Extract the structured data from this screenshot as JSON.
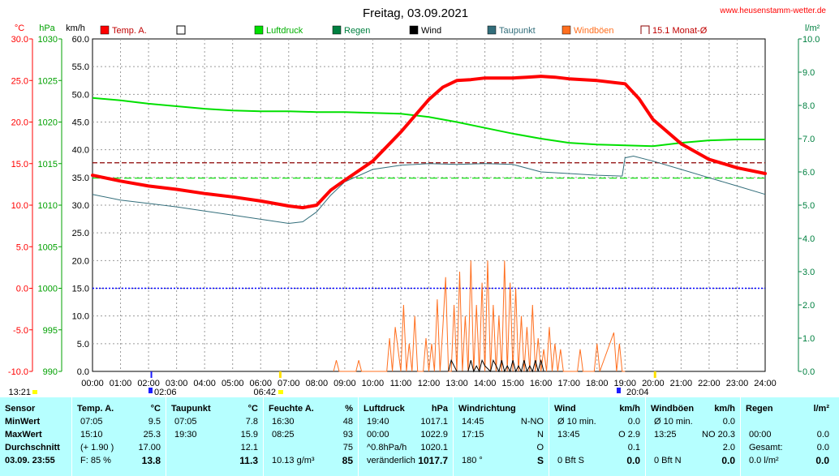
{
  "title": "Freitag, 03.09.2021",
  "site": "www.heusenstamm-wetter.de",
  "colors": {
    "temp": "#ff0000",
    "pressure": "#00e000",
    "rain": "#008040",
    "wind": "#000000",
    "dewpoint": "#336e7b",
    "gust": "#ff6f1f",
    "monthly_avg": "#8b0000",
    "zero_line": "#0000ff",
    "left_axis_temp": "#ff0000",
    "left_axis_hpa": "#00a000",
    "left_axis_kmh": "#000000",
    "right_axis": "#008040",
    "panel_bg": "#b6ffff"
  },
  "axes": {
    "temp_unit": "°C",
    "hpa_unit": "hPa",
    "kmh_unit": "km/h",
    "rain_unit": "l/m²",
    "temp_ticks": [
      "30.0",
      "25.0",
      "20.0",
      "15.0",
      "10.0",
      "5.0",
      "0.0",
      "-5.0",
      "-10.0"
    ],
    "hpa_ticks": [
      "1030",
      "1025",
      "1020",
      "1015",
      "1010",
      "1005",
      "1000",
      "995",
      "990"
    ],
    "kmh_ticks": [
      "60.0",
      "55.0",
      "50.0",
      "45.0",
      "40.0",
      "35.0",
      "30.0",
      "25.0",
      "20.0",
      "15.0",
      "10.0",
      "5.0",
      "0.0"
    ],
    "rain_ticks": [
      "10.0",
      "9.0",
      "8.0",
      "7.0",
      "6.0",
      "5.0",
      "4.0",
      "3.0",
      "2.0",
      "1.0",
      "0.0"
    ],
    "x_ticks": [
      "00:00",
      "01:00",
      "02:00",
      "03:00",
      "04:00",
      "05:00",
      "06:00",
      "07:00",
      "08:00",
      "09:00",
      "10:00",
      "11:00",
      "12:00",
      "13:00",
      "14:00",
      "15:00",
      "16:00",
      "17:00",
      "18:00",
      "19:00",
      "20:00",
      "21:00",
      "22:00",
      "23:00",
      "24:00"
    ]
  },
  "legend": [
    {
      "label": "Temp. A.",
      "color": "#ff0000",
      "style": "filled"
    },
    {
      "label": "",
      "color": "#ffffff",
      "style": "empty"
    },
    {
      "label": "Luftdruck",
      "color": "#00e000",
      "style": "filled"
    },
    {
      "label": "Regen",
      "color": "#008040",
      "style": "filled"
    },
    {
      "label": "Wind",
      "color": "#000000",
      "style": "filled"
    },
    {
      "label": "Taupunkt",
      "color": "#336e7b",
      "style": "filled"
    },
    {
      "label": "Windböen",
      "color": "#ff6f1f",
      "style": "filled"
    },
    {
      "label": "15.1 Monat-Ø",
      "color": "#8b0000",
      "style": "outline"
    }
  ],
  "markers": {
    "sunrise_label": "06:42",
    "sunset_label": "20:04",
    "moon_label": "02:06",
    "top_left_time": "13:21"
  },
  "chart_data": {
    "type": "line",
    "x_range_hours": [
      0,
      24
    ],
    "temp_range": [
      -10,
      30
    ],
    "kmh_range": [
      0,
      60
    ],
    "monthly_avg_temp": 15.1,
    "pressure_ref_hpa": 1013.25,
    "series": [
      {
        "name": "Temp. A.",
        "unit": "°C",
        "x": [
          0,
          1,
          2,
          3,
          4,
          5,
          6,
          7,
          7.5,
          8,
          8.5,
          9,
          10,
          11,
          12,
          12.5,
          13,
          13.5,
          14,
          14.5,
          15,
          15.5,
          16,
          16.5,
          17,
          18,
          19,
          19.5,
          20,
          21,
          22,
          23,
          24
        ],
        "values": [
          13.6,
          12.9,
          12.3,
          11.9,
          11.4,
          11.0,
          10.5,
          9.9,
          9.7,
          10.0,
          11.8,
          13.0,
          15.3,
          18.8,
          22.7,
          24.2,
          25.0,
          25.1,
          25.3,
          25.3,
          25.3,
          25.4,
          25.5,
          25.4,
          25.2,
          25.0,
          24.6,
          22.8,
          20.3,
          17.4,
          15.5,
          14.5,
          13.8
        ]
      },
      {
        "name": "Taupunkt",
        "unit": "°C",
        "x": [
          0,
          1,
          2,
          3,
          4,
          5,
          6,
          7,
          7.5,
          8,
          8.5,
          9,
          10,
          11,
          12,
          13,
          14,
          15,
          16,
          17,
          18,
          18.9,
          19,
          19.3,
          20,
          21,
          22,
          23,
          24
        ],
        "values": [
          11.3,
          10.6,
          10.2,
          9.8,
          9.3,
          8.8,
          8.3,
          7.8,
          8.0,
          9.2,
          11.2,
          12.8,
          14.3,
          14.8,
          15.0,
          14.9,
          15.0,
          14.9,
          14.0,
          13.8,
          13.6,
          13.5,
          15.7,
          15.9,
          15.3,
          14.3,
          13.3,
          12.3,
          11.3
        ]
      },
      {
        "name": "Luftdruck",
        "unit": "hPa",
        "x": [
          0,
          1,
          2,
          3,
          4,
          5,
          6,
          7,
          8,
          9,
          10,
          11,
          12,
          13,
          14,
          15,
          16,
          17,
          18,
          19,
          20,
          21,
          22,
          23,
          24
        ],
        "values": [
          1022.9,
          1022.6,
          1022.2,
          1021.9,
          1021.6,
          1021.4,
          1021.3,
          1021.3,
          1021.2,
          1021.2,
          1021.1,
          1021.0,
          1020.6,
          1020.0,
          1019.3,
          1018.6,
          1018.0,
          1017.5,
          1017.3,
          1017.2,
          1017.1,
          1017.5,
          1017.8,
          1017.9,
          1017.9
        ]
      },
      {
        "name": "Windböen",
        "unit": "km/h",
        "x": [
          8.6,
          8.7,
          8.8,
          9.4,
          9.5,
          9.6,
          10.5,
          10.6,
          10.7,
          10.8,
          11.0,
          11.1,
          11.2,
          11.3,
          11.4,
          11.5,
          11.6,
          11.8,
          11.9,
          12.0,
          12.1,
          12.2,
          12.3,
          12.4,
          12.5,
          12.6,
          12.7,
          12.8,
          12.9,
          13.0,
          13.1,
          13.2,
          13.3,
          13.4,
          13.5,
          13.6,
          13.7,
          13.8,
          13.9,
          14.0,
          14.1,
          14.2,
          14.3,
          14.4,
          14.5,
          14.6,
          14.7,
          14.8,
          14.9,
          15.0,
          15.1,
          15.2,
          15.3,
          15.4,
          15.5,
          15.6,
          15.7,
          15.8,
          15.9,
          16.0,
          16.1,
          16.2,
          16.3,
          16.4,
          16.5,
          16.6,
          16.7,
          16.8,
          17.3,
          17.4,
          17.5,
          17.9,
          18.0,
          18.1,
          18.6,
          18.7,
          18.8,
          18.9,
          19.0
        ],
        "values": [
          0,
          2,
          0,
          0,
          2,
          0,
          0,
          6,
          0,
          8,
          0,
          12,
          0,
          5,
          0,
          10,
          0,
          0,
          6,
          0,
          5,
          0,
          13,
          0,
          8,
          17,
          0,
          0,
          12,
          0,
          18,
          0,
          10,
          0,
          20,
          0,
          12,
          0,
          16,
          0,
          20,
          0,
          12,
          0,
          10,
          0,
          20,
          0,
          16,
          0,
          15,
          0,
          10,
          0,
          8,
          0,
          12,
          0,
          6,
          0,
          4,
          0,
          8,
          0,
          5,
          0,
          4,
          0,
          0,
          4,
          0,
          0,
          5,
          0,
          7,
          0,
          5,
          0,
          0
        ]
      },
      {
        "name": "Wind",
        "unit": "km/h",
        "x": [
          12.7,
          12.8,
          12.9,
          13.0,
          13.4,
          13.5,
          13.6,
          13.7,
          13.8,
          13.9,
          14.0,
          14.2,
          14.3,
          14.4,
          14.5,
          14.6,
          14.7,
          14.8,
          14.9,
          15.0,
          15.1,
          15.2,
          15.3,
          15.4,
          15.5,
          15.6,
          15.7,
          15.8,
          15.9,
          16.0,
          16.1
        ],
        "values": [
          0,
          2,
          1,
          0,
          0,
          2,
          0,
          1,
          0,
          2,
          1,
          0,
          2,
          1,
          0,
          2,
          0,
          1,
          0,
          2,
          0,
          1,
          0,
          2,
          0,
          1,
          0,
          2,
          0,
          2,
          0
        ]
      },
      {
        "name": "Regen",
        "unit": "l/m²",
        "x": [
          0,
          24
        ],
        "values": [
          0,
          0
        ]
      }
    ]
  },
  "panel": {
    "sensor": {
      "header": "Sensor",
      "rows": [
        "MinWert",
        "MaxWert",
        "Durchschnitt",
        "03.09.  23:55"
      ]
    },
    "temp": {
      "header": "Temp. A.",
      "unit": "°C",
      "rows": [
        [
          "07:05",
          "9.5"
        ],
        [
          "15:10",
          "25.3"
        ],
        [
          "(+ 1.90 )",
          "17.00"
        ],
        [
          "F: 85 %",
          "13.8"
        ]
      ]
    },
    "dew": {
      "header": "Taupunkt",
      "unit": "°C",
      "rows": [
        [
          "07:05",
          "7.8"
        ],
        [
          "19:30",
          "15.9"
        ],
        [
          "",
          "12.1"
        ],
        [
          "",
          "11.3"
        ]
      ]
    },
    "hum": {
      "header": "Feuchte A.",
      "unit": "%",
      "rows": [
        [
          "16:30",
          "48"
        ],
        [
          "08:25",
          "93"
        ],
        [
          "",
          "75"
        ],
        [
          "10.13 g/m³",
          "85"
        ]
      ]
    },
    "press": {
      "header": "Luftdruck",
      "unit": "hPa",
      "rows": [
        [
          "19:40",
          "1017.1"
        ],
        [
          "00:00",
          "1022.9"
        ],
        [
          "^0.8hPa/h",
          "1020.1"
        ],
        [
          "veränderlich",
          "1017.7"
        ]
      ]
    },
    "dir": {
      "header": "Windrichtung",
      "rows": [
        [
          "14:45",
          "N-NO"
        ],
        [
          "17:15",
          "N"
        ],
        [
          "",
          "O"
        ],
        [
          "180 °",
          "S"
        ]
      ]
    },
    "wind": {
      "header": "Wind",
      "unit": "km/h",
      "rows": [
        [
          "Ø 10 min.",
          "0.0"
        ],
        [
          "13:45",
          "O 2.9"
        ],
        [
          "",
          "0.1"
        ],
        [
          "0 Bft S",
          "0.0"
        ]
      ]
    },
    "gust": {
      "header": "Windböen",
      "unit": "km/h",
      "rows": [
        [
          "Ø 10 min.",
          "0.0"
        ],
        [
          "13:25",
          "NO 20.3"
        ],
        [
          "",
          "2.0"
        ],
        [
          "0 Bft N",
          "0.0"
        ]
      ]
    },
    "rain": {
      "header": "Regen",
      "unit": "l/m²",
      "rows": [
        [
          "",
          ""
        ],
        [
          "00:00",
          "0.0"
        ],
        [
          "Gesamt:",
          "0.0"
        ],
        [
          "0.0 l/m²",
          "0.0"
        ]
      ]
    }
  }
}
